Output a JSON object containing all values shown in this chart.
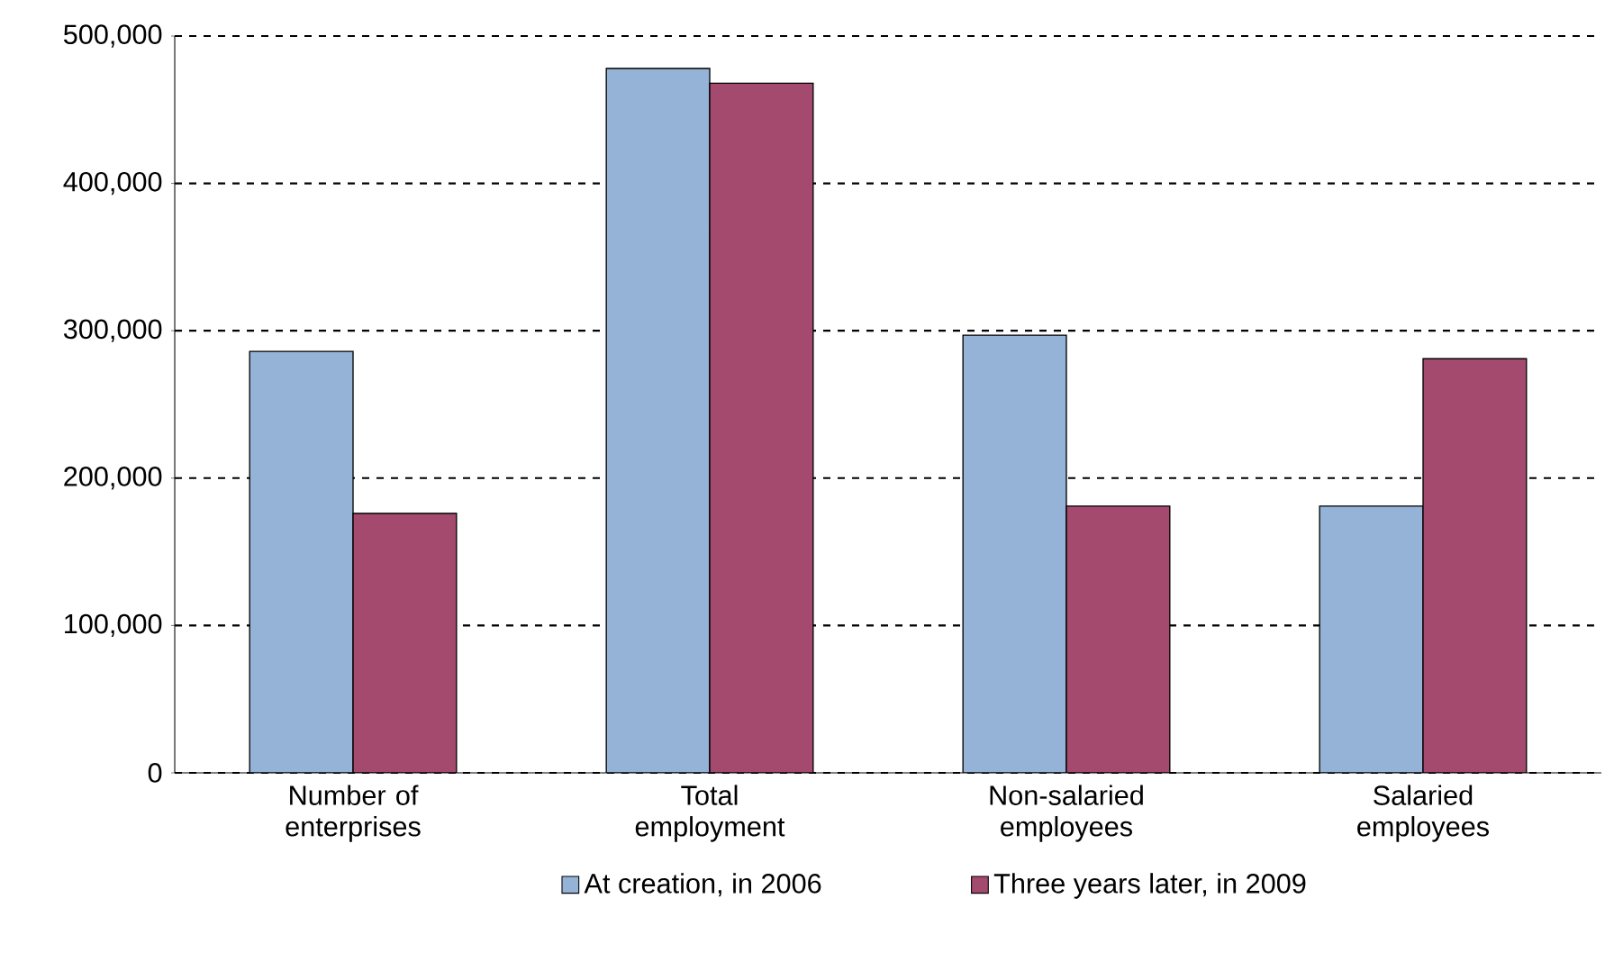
{
  "chart_data": {
    "type": "bar",
    "categories": [
      "Number of enterprises",
      "Total employment",
      "Non-salaried employees",
      "Salaried employees"
    ],
    "series": [
      {
        "name": "At creation, in 2006",
        "color": "#95b3d7",
        "values": [
          286000,
          478000,
          297000,
          181000
        ]
      },
      {
        "name": "Three years later, in 2009",
        "color": "#a44a6e",
        "values": [
          176000,
          468000,
          181000,
          281000
        ]
      }
    ],
    "ylim": [
      0,
      500000
    ],
    "yticks": [
      0,
      {
        "value": 100000,
        "label": "100,000"
      },
      {
        "value": 200000,
        "label": "200,000"
      },
      {
        "value": 300000,
        "label": "300,000"
      },
      {
        "value": 400000,
        "label": "400,000"
      },
      {
        "value": 500000,
        "label": "500,000"
      }
    ],
    "grid": "y",
    "legend": "bottom"
  }
}
